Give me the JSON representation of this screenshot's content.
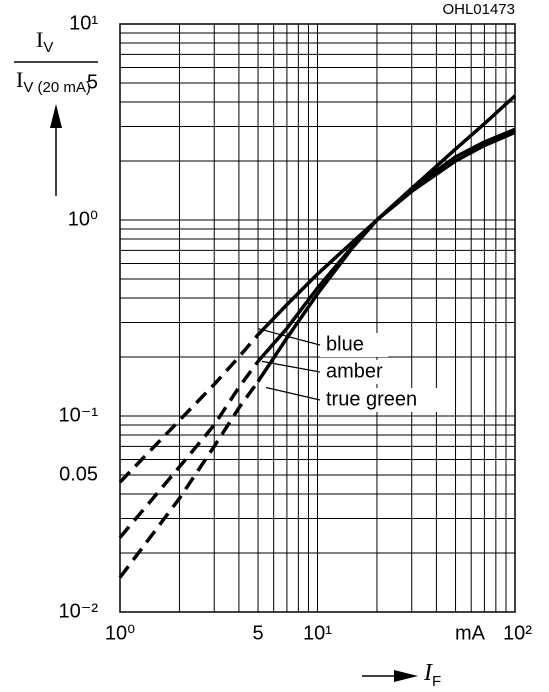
{
  "chart_data": {
    "type": "line",
    "code": "OHL01473",
    "y_label_numerator": [
      "I",
      "V"
    ],
    "y_label_denominator": [
      "I",
      "V (20 mA)"
    ],
    "x_label": [
      "I",
      "F"
    ],
    "x_unit": "mA",
    "log_x": true,
    "log_y": true,
    "grid": true,
    "xlim": [
      1,
      100
    ],
    "ylim": [
      0.01,
      10
    ],
    "xticks": [
      {
        "value": 1,
        "label": "10⁰"
      },
      5,
      {
        "value": 10,
        "label": "10¹"
      },
      {
        "value": 100,
        "label": "10²"
      }
    ],
    "yticks": [
      {
        "value": 0.01,
        "label": "10⁻²"
      },
      0.05,
      {
        "value": 0.1,
        "label": "10⁻¹"
      },
      5,
      {
        "value": 1,
        "label": "10⁰"
      },
      {
        "value": 10,
        "label": "10¹"
      }
    ],
    "x_grid": [
      1,
      2,
      3,
      4,
      5,
      6,
      7,
      8,
      9,
      10,
      20,
      30,
      40,
      50,
      60,
      70,
      80,
      90,
      100
    ],
    "y_grid": [
      0.01,
      0.02,
      0.03,
      0.04,
      0.05,
      0.06,
      0.07,
      0.08,
      0.09,
      0.1,
      0.2,
      0.3,
      0.4,
      0.5,
      0.6,
      0.7,
      0.8,
      0.9,
      1,
      2,
      3,
      4,
      5,
      6,
      7,
      8,
      9,
      10
    ],
    "x": [
      1,
      2,
      3,
      4,
      5,
      7,
      10,
      15,
      20,
      30,
      50,
      70,
      100
    ],
    "series": [
      {
        "name": "blue",
        "color": "#000000",
        "dashed_to_x": 5,
        "values": [
          0.046,
          0.095,
          0.145,
          0.2,
          0.26,
          0.37,
          0.53,
          0.77,
          1,
          1.45,
          2.3,
          3.1,
          4.3
        ]
      },
      {
        "name": "amber",
        "color": "#000000",
        "dashed_to_x": 5,
        "values": [
          0.024,
          0.055,
          0.09,
          0.14,
          0.19,
          0.28,
          0.45,
          0.73,
          1,
          1.4,
          2.0,
          2.4,
          2.8
        ]
      },
      {
        "name": "true green",
        "color": "#000000",
        "dashed_to_x": 5,
        "values": [
          0.015,
          0.038,
          0.07,
          0.11,
          0.15,
          0.25,
          0.42,
          0.72,
          1,
          1.45,
          2.1,
          2.5,
          2.9
        ]
      }
    ]
  }
}
